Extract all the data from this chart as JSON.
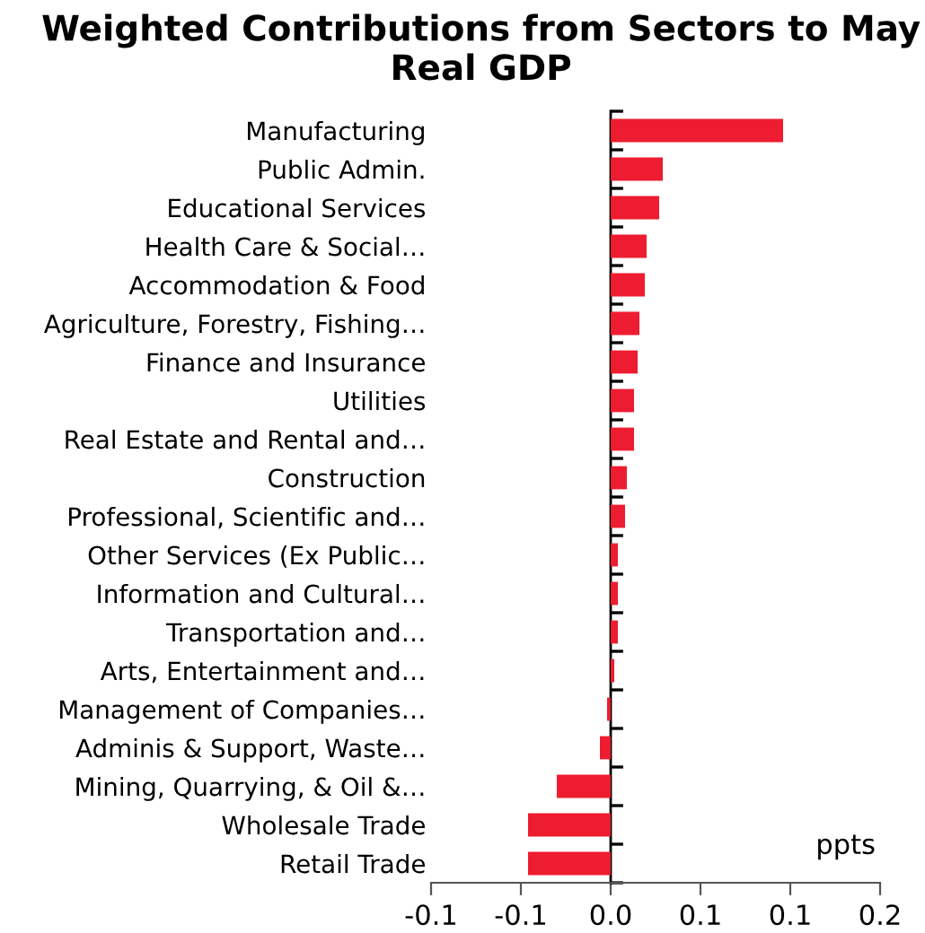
{
  "chart_data": {
    "type": "bar",
    "orientation": "horizontal",
    "title": "Weighted Contributions from Sectors to May Real GDP",
    "categories": [
      "Manufacturing",
      "Public Admin.",
      "Educational Services",
      "Health Care & Social…",
      "Accommodation & Food",
      "Agriculture, Forestry, Fishing…",
      "Finance and Insurance",
      "Utilities",
      "Real Estate and Rental and…",
      "Construction",
      "Professional, Scientific and…",
      "Other Services (Ex Public…",
      "Information and Cultural…",
      "Transportation and…",
      "Arts, Entertainment and…",
      "Management of Companies…",
      "Adminis & Support, Waste…",
      "Mining, Quarrying, & Oil &…",
      "Wholesale Trade",
      "Retail Trade"
    ],
    "values": [
      0.096,
      0.029,
      0.027,
      0.02,
      0.019,
      0.016,
      0.015,
      0.013,
      0.013,
      0.009,
      0.008,
      0.004,
      0.004,
      0.004,
      0.002,
      -0.002,
      -0.006,
      -0.03,
      -0.046,
      -0.046
    ],
    "color": "#ee1c30",
    "xlim": [
      -0.1,
      0.15
    ],
    "xticks": [
      {
        "value": -0.1,
        "label": "-0.1"
      },
      {
        "value": -0.05,
        "label": "-0.1"
      },
      {
        "value": 0,
        "label": "0.0"
      },
      {
        "value": 0.05,
        "label": "0.1"
      },
      {
        "value": 0.1,
        "label": "0.1"
      },
      {
        "value": 0.15,
        "label": "0.2"
      }
    ],
    "annotations": [
      "ppts"
    ],
    "legend": false
  }
}
